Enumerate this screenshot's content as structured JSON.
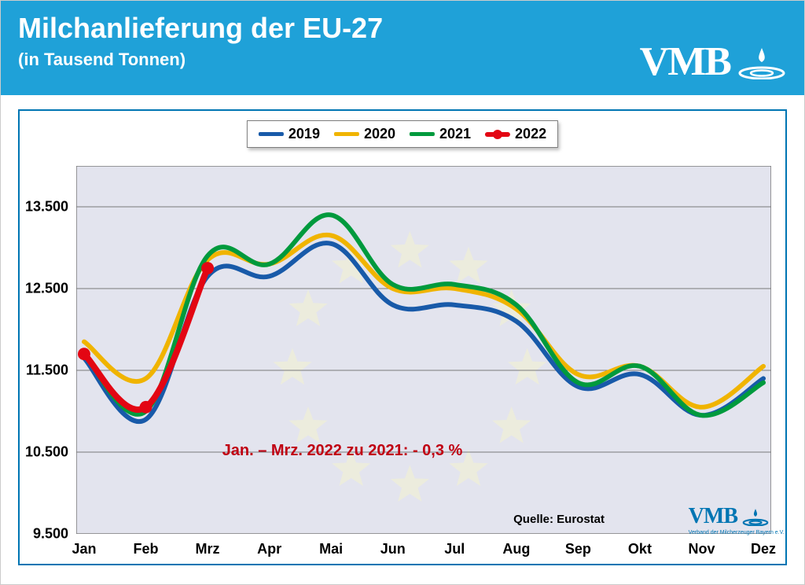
{
  "header": {
    "title": "Milchanlieferung der EU-27",
    "subtitle": "(in Tausend Tonnen)",
    "bg_color": "#1fa1d8",
    "text_color": "#ffffff"
  },
  "logo": {
    "text": "VMB",
    "color_main": "#ffffff",
    "color_small": "#0075b3",
    "subtext": "Verband der Milcherzeuger Bayern e.V."
  },
  "chart": {
    "type": "line",
    "border_color": "#0075b3",
    "plot_bg": "#e3e4ee",
    "grid_color": "#7a7a7a",
    "ylim": [
      9500,
      14000
    ],
    "yticks": [
      9500,
      10500,
      11500,
      12500,
      13500
    ],
    "ytick_labels": [
      "9.500",
      "10.500",
      "11.500",
      "12.500",
      "13.500"
    ],
    "x_categories": [
      "Jan",
      "Feb",
      "Mrz",
      "Apr",
      "Mai",
      "Jun",
      "Jul",
      "Aug",
      "Sep",
      "Okt",
      "Nov",
      "Dez"
    ],
    "line_width": 6,
    "series": [
      {
        "name": "2019",
        "color": "#185aa9",
        "marker": false,
        "values": [
          11650,
          10900,
          12650,
          12650,
          13050,
          12300,
          12300,
          12100,
          11300,
          11450,
          10950,
          11400
        ]
      },
      {
        "name": "2020",
        "color": "#f0b400",
        "marker": false,
        "values": [
          11850,
          11400,
          12850,
          12800,
          13150,
          12500,
          12500,
          12250,
          11450,
          11550,
          11050,
          11550
        ]
      },
      {
        "name": "2021",
        "color": "#009a3d",
        "marker": false,
        "values": [
          11700,
          11000,
          12900,
          12800,
          13400,
          12550,
          12550,
          12300,
          11350,
          11550,
          10950,
          11350
        ]
      },
      {
        "name": "2022",
        "color": "#e30613",
        "marker": true,
        "values": [
          11700,
          11050,
          12750
        ]
      }
    ],
    "legend_fontsize": 18,
    "axis_fontsize": 18,
    "annotation": {
      "text": "Jan. – Mrz.  2022 zu 2021: - 0,3 %",
      "color": "#c00012",
      "fontsize": 20
    },
    "source": "Quelle: Eurostat",
    "eu_star_color": "#f4f2cf"
  }
}
